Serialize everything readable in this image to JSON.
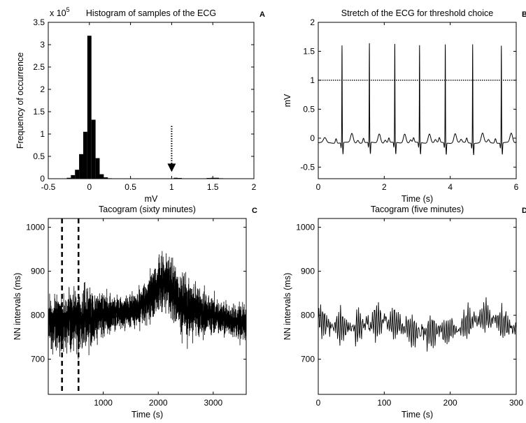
{
  "chart_data": [
    {
      "type": "bar",
      "panel_letter": "A",
      "title": "Histogram of samples of the ECG",
      "exponent_label": "x 10",
      "exponent_power": "5",
      "xlabel": "mV",
      "ylabel": "Frequency of occurrence",
      "xlim": [
        -0.5,
        2
      ],
      "ylim": [
        0,
        3.5
      ],
      "y_scale_factor": 100000,
      "xticks": [
        -0.5,
        0,
        0.5,
        1,
        1.5,
        2
      ],
      "xtick_labels": [
        "-0.5",
        "0",
        "0.5",
        "1",
        "1.5",
        "2"
      ],
      "yticks": [
        0,
        0.5,
        1,
        1.5,
        2,
        2.5,
        3,
        3.5
      ],
      "ytick_labels": [
        "0",
        "0.5",
        "1",
        "1.5",
        "2",
        "2.5",
        "3",
        "3.5"
      ],
      "bin_width": 0.05,
      "bin_centers": [
        -0.25,
        -0.2,
        -0.15,
        -0.1,
        -0.05,
        0,
        0.05,
        0.1,
        0.15,
        0.2,
        0.25,
        1.05,
        1.1,
        1.45,
        1.5,
        1.55,
        1.6
      ],
      "values": [
        0.02,
        0.08,
        0.2,
        0.55,
        1.05,
        3.2,
        1.32,
        0.46,
        0.1,
        0.03,
        0.01,
        0.02,
        0.015,
        0.015,
        0.02,
        0.02,
        0.01
      ],
      "threshold_arrow_x": 1,
      "threshold_arrow_from_y": 1.18,
      "threshold_arrow_to_y": 0.15,
      "grid": false
    },
    {
      "type": "line",
      "panel_letter": "B",
      "title": "Stretch of the ECG for threshold choice",
      "xlabel": "Time (s)",
      "ylabel": "mV",
      "xlim": [
        0,
        6
      ],
      "ylim": [
        -0.7,
        2
      ],
      "xticks": [
        0,
        2,
        4,
        6
      ],
      "xtick_labels": [
        "0",
        "2",
        "4",
        "6"
      ],
      "yticks": [
        -0.5,
        0,
        0.5,
        1,
        1.5,
        2
      ],
      "ytick_labels": [
        "-0.5",
        "0",
        "0.5",
        "1",
        "1.5",
        "2"
      ],
      "threshold": 1.0,
      "r_peak_times": [
        0.72,
        1.55,
        2.32,
        3.07,
        3.85,
        4.68,
        5.55
      ],
      "r_peak_heights": [
        1.6,
        1.63,
        1.62,
        1.6,
        1.62,
        1.63,
        1.6
      ],
      "baseline": -0.08,
      "grid": false
    },
    {
      "type": "line",
      "panel_letter": "C",
      "title": "Tacogram (sixty minutes)",
      "xlabel": "Time (s)",
      "ylabel": "NN intervals (ms)",
      "xlim": [
        0,
        3600
      ],
      "ylim": [
        620,
        1020
      ],
      "xticks": [
        1000,
        2000,
        3000
      ],
      "xtick_labels": [
        "1000",
        "2000",
        "3000"
      ],
      "yticks": [
        700,
        800,
        900,
        1000
      ],
      "ytick_labels": [
        "700",
        "800",
        "900",
        "1000"
      ],
      "selection_markers_x": [
        250,
        550
      ],
      "trend_x": [
        0,
        300,
        600,
        900,
        1200,
        1500,
        1800,
        2000,
        2150,
        2400,
        2700,
        3000,
        3300,
        3600
      ],
      "trend_y": [
        790,
        785,
        790,
        800,
        805,
        810,
        830,
        870,
        880,
        830,
        810,
        800,
        790,
        780
      ],
      "grid": false
    },
    {
      "type": "line",
      "panel_letter": "D",
      "title": "Tacogram (five minutes)",
      "xlabel": "Time (s)",
      "ylabel": "NN intervals (ms)",
      "xlim": [
        0,
        300
      ],
      "ylim": [
        620,
        1020
      ],
      "xticks": [
        0,
        100,
        200,
        300
      ],
      "xtick_labels": [
        "0",
        "100",
        "200",
        "300"
      ],
      "yticks": [
        700,
        800,
        900,
        1000
      ],
      "ytick_labels": [
        "700",
        "800",
        "900",
        "1000"
      ],
      "trend_x": [
        0,
        50,
        100,
        150,
        200,
        250,
        300
      ],
      "trend_y": [
        785,
        770,
        790,
        760,
        765,
        800,
        770
      ],
      "grid": false
    }
  ]
}
